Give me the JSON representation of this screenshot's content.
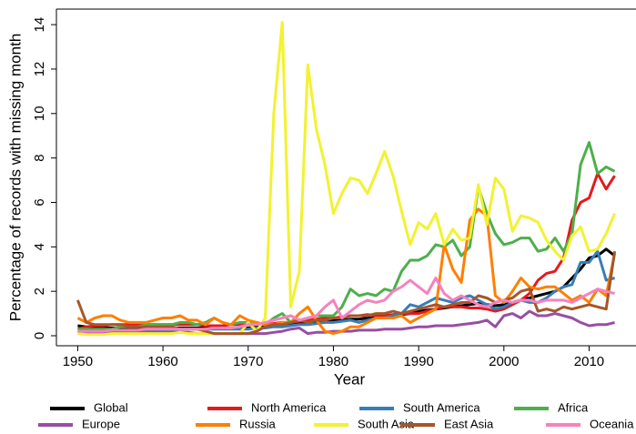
{
  "chart_data": {
    "type": "line",
    "x_label": "Year",
    "y_label": "Percentage of records with missing month",
    "x": [
      1950,
      1951,
      1952,
      1953,
      1954,
      1955,
      1956,
      1957,
      1958,
      1959,
      1960,
      1961,
      1962,
      1963,
      1964,
      1965,
      1966,
      1967,
      1968,
      1969,
      1970,
      1971,
      1972,
      1973,
      1974,
      1975,
      1976,
      1977,
      1978,
      1979,
      1980,
      1981,
      1982,
      1983,
      1984,
      1985,
      1986,
      1987,
      1988,
      1989,
      1990,
      1991,
      1992,
      1993,
      1994,
      1995,
      1996,
      1997,
      1998,
      1999,
      2000,
      2001,
      2002,
      2003,
      2004,
      2005,
      2006,
      2007,
      2008,
      2009,
      2010,
      2011,
      2012,
      2013
    ],
    "xlim": [
      1947.5,
      2015.5
    ],
    "xticks": [
      1950,
      1960,
      1970,
      1980,
      1990,
      2000,
      2010
    ],
    "ylim": [
      -0.45,
      14.7
    ],
    "yticks": [
      0,
      2,
      4,
      6,
      8,
      10,
      12,
      14
    ],
    "series": [
      {
        "name": "Global",
        "color": "#000000",
        "values": [
          0.45,
          0.4,
          0.35,
          0.35,
          0.35,
          0.35,
          0.35,
          0.35,
          0.35,
          0.35,
          0.35,
          0.35,
          0.35,
          0.35,
          0.35,
          0.35,
          0.35,
          0.35,
          0.35,
          0.35,
          0.35,
          0.4,
          0.4,
          0.45,
          0.5,
          0.5,
          0.55,
          0.6,
          0.65,
          0.65,
          0.7,
          0.7,
          0.75,
          0.75,
          0.8,
          0.8,
          0.85,
          0.9,
          0.95,
          1.0,
          1.1,
          1.15,
          1.2,
          1.25,
          1.3,
          1.35,
          1.4,
          1.45,
          1.4,
          1.35,
          1.4,
          1.5,
          1.6,
          1.7,
          1.8,
          1.9,
          2.0,
          2.2,
          2.6,
          3.0,
          3.5,
          3.6,
          3.9,
          3.6
        ]
      },
      {
        "name": "North America",
        "color": "#e41a1c",
        "values": [
          0.3,
          0.4,
          0.45,
          0.45,
          0.5,
          0.5,
          0.5,
          0.5,
          0.5,
          0.5,
          0.5,
          0.5,
          0.5,
          0.5,
          0.5,
          0.45,
          0.45,
          0.45,
          0.5,
          0.5,
          0.5,
          0.5,
          0.5,
          0.55,
          0.6,
          0.6,
          0.65,
          0.7,
          0.75,
          0.8,
          0.8,
          0.85,
          0.9,
          0.9,
          0.95,
          0.9,
          0.9,
          0.95,
          1.0,
          1.0,
          1.0,
          1.1,
          1.2,
          1.3,
          1.3,
          1.3,
          1.25,
          1.25,
          1.2,
          1.1,
          1.2,
          1.4,
          1.6,
          1.9,
          2.5,
          2.8,
          2.9,
          3.5,
          5.2,
          6.0,
          6.2,
          7.3,
          6.6,
          7.2
        ]
      },
      {
        "name": "South America",
        "color": "#377eb8",
        "values": [
          0.2,
          0.2,
          0.2,
          0.2,
          0.2,
          0.2,
          0.25,
          0.25,
          0.25,
          0.25,
          0.25,
          0.25,
          0.3,
          0.3,
          0.3,
          0.3,
          0.3,
          0.3,
          0.3,
          0.3,
          0.3,
          0.35,
          0.35,
          0.4,
          0.4,
          0.45,
          0.5,
          0.5,
          0.55,
          0.6,
          0.6,
          0.65,
          0.7,
          0.6,
          0.7,
          0.8,
          0.8,
          0.9,
          1.0,
          1.4,
          1.3,
          1.5,
          1.7,
          1.6,
          1.5,
          1.7,
          1.8,
          1.6,
          1.4,
          1.2,
          1.3,
          1.5,
          1.6,
          1.5,
          1.5,
          1.7,
          2.0,
          2.2,
          2.3,
          3.3,
          3.3,
          3.8,
          2.5,
          2.6
        ]
      },
      {
        "name": "Africa",
        "color": "#4daf4a",
        "values": [
          0.3,
          0.3,
          0.3,
          0.3,
          0.3,
          0.4,
          0.4,
          0.4,
          0.5,
          0.5,
          0.5,
          0.5,
          0.6,
          0.6,
          0.5,
          0.6,
          0.8,
          0.6,
          0.5,
          0.6,
          0.6,
          0.6,
          0.5,
          0.8,
          1.0,
          0.6,
          0.7,
          0.8,
          0.9,
          0.9,
          0.9,
          1.3,
          2.1,
          1.8,
          1.9,
          1.8,
          2.1,
          2.0,
          2.9,
          3.4,
          3.4,
          3.6,
          4.1,
          4.0,
          4.3,
          3.6,
          4.0,
          6.7,
          5.5,
          4.6,
          4.1,
          4.2,
          4.4,
          4.4,
          3.8,
          3.9,
          4.4,
          3.8,
          4.6,
          7.7,
          8.7,
          7.3,
          7.6,
          7.4
        ]
      },
      {
        "name": "Europe",
        "color": "#984ea3",
        "values": [
          0.2,
          0.15,
          0.15,
          0.15,
          0.15,
          0.15,
          0.15,
          0.15,
          0.15,
          0.15,
          0.15,
          0.15,
          0.15,
          0.15,
          0.1,
          0.1,
          0.1,
          0.1,
          0.1,
          0.1,
          0.1,
          0.1,
          0.1,
          0.15,
          0.2,
          0.3,
          0.35,
          0.1,
          0.15,
          0.15,
          0.2,
          0.2,
          0.2,
          0.25,
          0.25,
          0.25,
          0.3,
          0.3,
          0.3,
          0.35,
          0.4,
          0.4,
          0.45,
          0.45,
          0.45,
          0.5,
          0.55,
          0.6,
          0.7,
          0.4,
          0.9,
          1.0,
          0.8,
          1.1,
          0.9,
          0.9,
          1.0,
          0.9,
          0.8,
          0.6,
          0.45,
          0.5,
          0.5,
          0.6
        ]
      },
      {
        "name": "Russia",
        "color": "#ff7f00",
        "values": [
          0.8,
          0.6,
          0.8,
          0.9,
          0.9,
          0.7,
          0.6,
          0.6,
          0.6,
          0.7,
          0.8,
          0.8,
          0.9,
          0.7,
          0.7,
          0.5,
          0.8,
          0.6,
          0.5,
          0.9,
          0.7,
          0.6,
          0.5,
          0.5,
          0.6,
          0.6,
          1.0,
          1.3,
          0.7,
          0.2,
          0.1,
          0.2,
          0.4,
          0.4,
          0.6,
          0.8,
          0.8,
          0.8,
          0.9,
          0.6,
          0.8,
          1.0,
          1.2,
          4.1,
          3.0,
          2.4,
          5.2,
          5.7,
          5.4,
          1.8,
          1.5,
          2.0,
          2.6,
          2.2,
          2.1,
          2.2,
          2.2,
          1.9,
          1.6,
          1.8,
          1.5,
          2.1,
          1.8,
          3.7
        ]
      },
      {
        "name": "South Asia",
        "color": "#f2f230",
        "values": [
          0.1,
          0.05,
          0.05,
          0.05,
          0.1,
          0.1,
          0.1,
          0.1,
          0.1,
          0.1,
          0.1,
          0.1,
          0.15,
          0.1,
          0.1,
          0.1,
          0.1,
          0.1,
          0.1,
          0.1,
          0.6,
          0.2,
          0.8,
          10.0,
          14.1,
          1.3,
          2.9,
          12.2,
          9.3,
          7.7,
          5.5,
          6.4,
          7.1,
          7.0,
          6.4,
          7.3,
          8.3,
          7.2,
          5.6,
          4.1,
          5.1,
          4.8,
          5.5,
          4.1,
          4.8,
          4.3,
          4.4,
          6.8,
          5.0,
          7.1,
          6.6,
          4.7,
          5.4,
          5.3,
          5.1,
          4.3,
          3.8,
          3.4,
          4.5,
          4.9,
          3.8,
          3.9,
          4.6,
          5.5
        ]
      },
      {
        "name": "East Asia",
        "color": "#a65628",
        "values": [
          1.6,
          0.6,
          0.5,
          0.5,
          0.5,
          0.5,
          0.4,
          0.4,
          0.4,
          0.4,
          0.4,
          0.4,
          0.3,
          0.3,
          0.3,
          0.2,
          0.1,
          0.1,
          0.1,
          0.1,
          0.1,
          0.2,
          0.4,
          0.5,
          0.5,
          0.6,
          0.7,
          0.6,
          0.7,
          0.7,
          0.8,
          0.8,
          0.9,
          0.9,
          0.9,
          1.0,
          1.0,
          1.1,
          1.0,
          1.1,
          1.2,
          1.3,
          1.4,
          1.3,
          1.4,
          1.5,
          1.5,
          1.8,
          1.7,
          1.5,
          1.6,
          1.7,
          2.0,
          2.1,
          1.1,
          1.2,
          1.1,
          1.3,
          1.2,
          1.3,
          1.4,
          1.3,
          1.2,
          3.8
        ]
      },
      {
        "name": "Oceania",
        "color": "#f781bf",
        "values": [
          0.2,
          0.2,
          0.2,
          0.2,
          0.25,
          0.25,
          0.25,
          0.25,
          0.3,
          0.3,
          0.3,
          0.3,
          0.3,
          0.3,
          0.3,
          0.3,
          0.35,
          0.35,
          0.35,
          0.4,
          0.5,
          0.5,
          0.6,
          0.7,
          0.8,
          0.9,
          0.7,
          0.8,
          0.9,
          1.3,
          1.6,
          0.8,
          1.1,
          1.4,
          1.6,
          1.5,
          1.6,
          2.0,
          2.2,
          2.5,
          2.2,
          1.9,
          2.6,
          1.9,
          1.6,
          1.8,
          1.6,
          1.4,
          1.3,
          1.5,
          1.6,
          1.5,
          1.6,
          1.6,
          1.5,
          1.6,
          1.6,
          1.6,
          1.5,
          1.7,
          1.9,
          2.1,
          2.0,
          1.9
        ]
      }
    ]
  }
}
